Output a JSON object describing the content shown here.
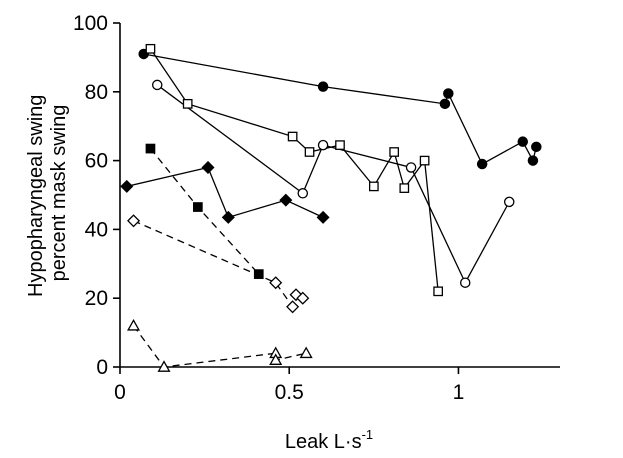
{
  "chart_data": {
    "type": "scatter",
    "title": "",
    "xlabel": "Leak",
    "xlabel_unit": "L·s",
    "xlabel_unit_exp": "-1",
    "ylabel_line1": "Hypopharyngeal swing",
    "ylabel_line2": "percent mask swing",
    "xlim": [
      0,
      1.3
    ],
    "ylim": [
      0,
      100
    ],
    "xticks": [
      0,
      0.5,
      1
    ],
    "xtick_labels": [
      "0",
      "0.5",
      "1"
    ],
    "yticks": [
      0,
      20,
      40,
      60,
      80,
      100
    ],
    "ytick_labels": [
      "0",
      "20",
      "40",
      "60",
      "80",
      "100"
    ],
    "grid": false,
    "legend": false,
    "series": [
      {
        "marker": "circle",
        "fill": "#000000",
        "line": "solid",
        "points": [
          [
            0.07,
            91
          ],
          [
            0.6,
            81.5
          ],
          [
            0.96,
            76.5
          ],
          [
            0.97,
            79.5
          ],
          [
            1.07,
            59
          ],
          [
            1.19,
            65.5
          ],
          [
            1.22,
            60
          ],
          [
            1.23,
            64
          ]
        ]
      },
      {
        "marker": "square",
        "fill": "#ffffff",
        "line": "solid",
        "points": [
          [
            0.09,
            92.5
          ],
          [
            0.2,
            76.5
          ],
          [
            0.51,
            67
          ],
          [
            0.56,
            62.5
          ],
          [
            0.65,
            64.5
          ],
          [
            0.75,
            52.5
          ],
          [
            0.81,
            62.5
          ],
          [
            0.84,
            52
          ],
          [
            0.9,
            60
          ],
          [
            0.94,
            22
          ]
        ]
      },
      {
        "marker": "circle",
        "fill": "#ffffff",
        "line": "solid",
        "points": [
          [
            0.11,
            82
          ],
          [
            0.54,
            50.5
          ],
          [
            0.6,
            64.5
          ],
          [
            0.86,
            58
          ],
          [
            1.02,
            24.5
          ],
          [
            1.15,
            48
          ]
        ]
      },
      {
        "marker": "diamond",
        "fill": "#000000",
        "line": "solid",
        "points": [
          [
            0.02,
            52.5
          ],
          [
            0.26,
            58
          ],
          [
            0.32,
            43.5
          ],
          [
            0.49,
            48.5
          ],
          [
            0.6,
            43.5
          ]
        ]
      },
      {
        "marker": "square",
        "fill": "#000000",
        "line": "dashed",
        "points": [
          [
            0.09,
            63.5
          ],
          [
            0.23,
            46.5
          ],
          [
            0.41,
            27
          ]
        ]
      },
      {
        "marker": "diamond",
        "fill": "#ffffff",
        "line": "dashed",
        "points": [
          [
            0.04,
            42.5
          ],
          [
            0.46,
            24.5
          ],
          [
            0.51,
            17.5
          ],
          [
            0.52,
            21
          ],
          [
            0.54,
            20
          ]
        ]
      },
      {
        "marker": "triangle",
        "fill": "#ffffff",
        "line": "dashed",
        "points": [
          [
            0.04,
            12
          ],
          [
            0.13,
            0
          ],
          [
            0.46,
            4
          ],
          [
            0.46,
            2
          ],
          [
            0.55,
            4
          ]
        ]
      }
    ]
  }
}
